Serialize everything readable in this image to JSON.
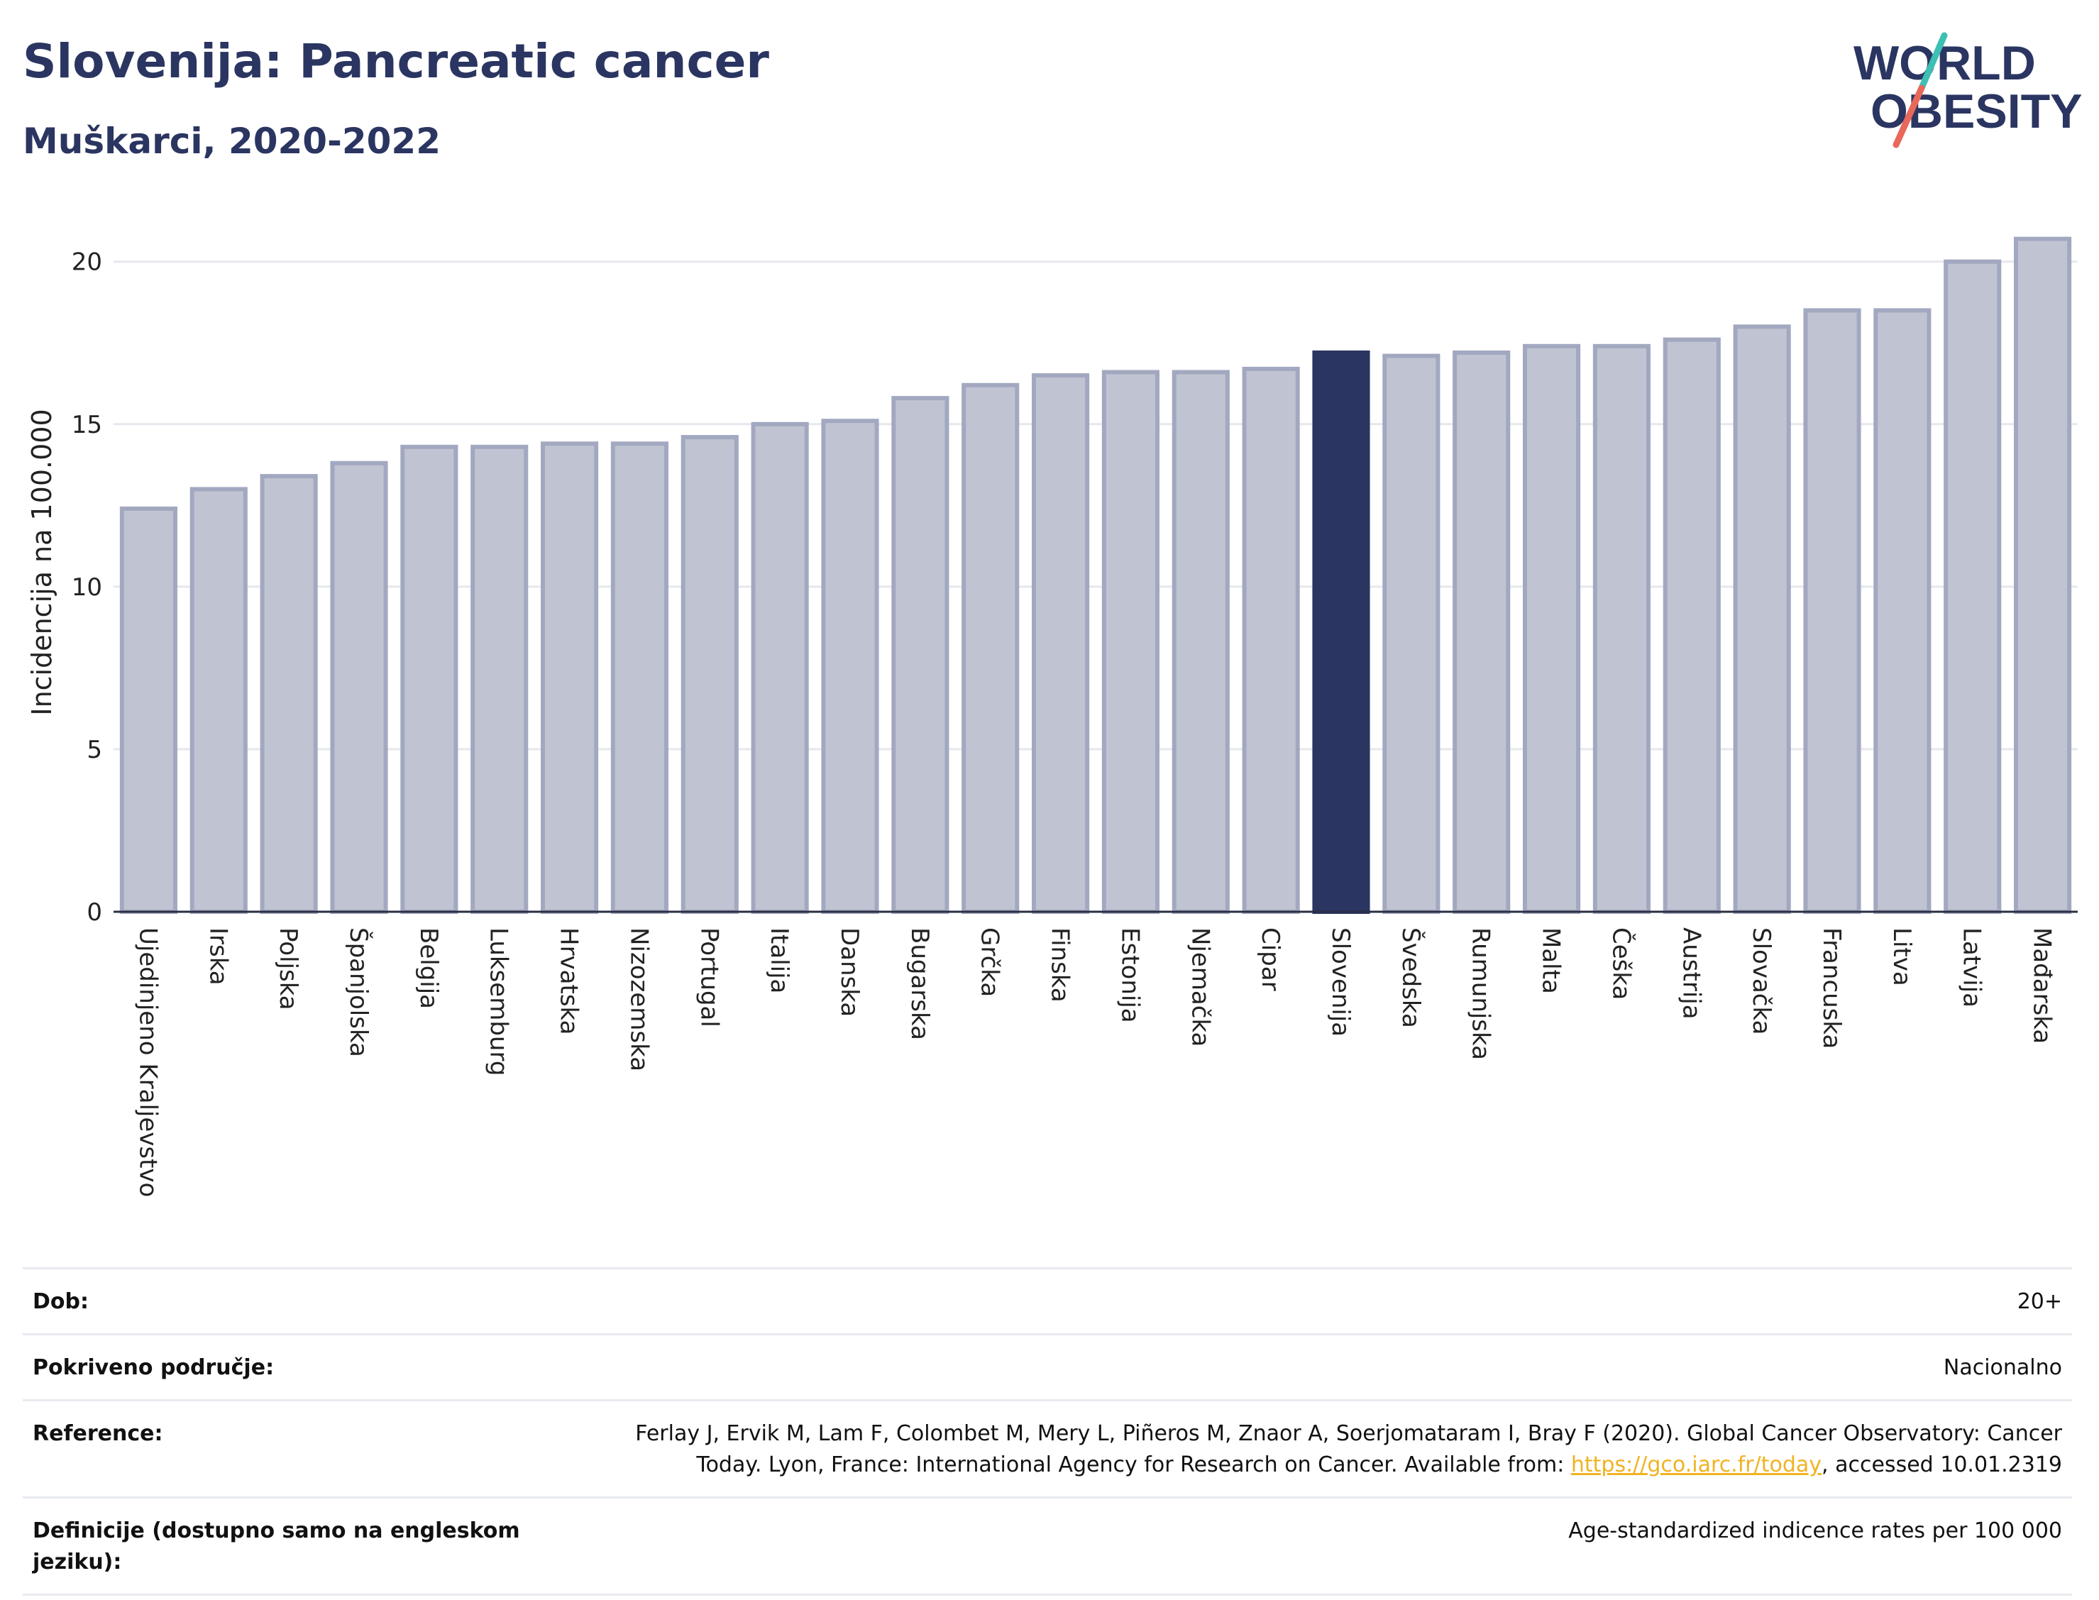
{
  "header": {
    "title": "Slovenija: Pancreatic cancer",
    "subtitle": "Muškarci, 2020-2022"
  },
  "logo": {
    "line1": "WORLD",
    "line2": "OBESITY"
  },
  "colors": {
    "highlight": "#2b3561",
    "bar_fill": "#c0c4d2",
    "bar_stroke": "#a2a8bf",
    "grid": "#e6e8ee",
    "logo_text": "#2b3561",
    "logo_slash_top": "#3dbfb4",
    "logo_slash_bottom": "#e8685a"
  },
  "chart_data": {
    "type": "bar",
    "ylabel": "Incidencija na 100.000",
    "ylim": [
      0,
      21.5
    ],
    "yticks": [
      0,
      5,
      10,
      15,
      20
    ],
    "grid": true,
    "highlight_category": "Slovenija",
    "categories": [
      "Ujedinjeno Kraljevstvo",
      "Irska",
      "Poljska",
      "Španjolska",
      "Belgija",
      "Luksemburg",
      "Hrvatska",
      "Nizozemska",
      "Portugal",
      "Italija",
      "Danska",
      "Bugarska",
      "Grčka",
      "Finska",
      "Estonija",
      "Njemačka",
      "Cipar",
      "Slovenija",
      "Švedska",
      "Rumunjska",
      "Malta",
      "Češka",
      "Austrija",
      "Slovačka",
      "Francuska",
      "Litva",
      "Latvija",
      "Mađarska"
    ],
    "values": [
      12.4,
      13.0,
      13.4,
      13.8,
      14.3,
      14.3,
      14.4,
      14.4,
      14.6,
      15.0,
      15.1,
      15.8,
      16.2,
      16.5,
      16.6,
      16.6,
      16.7,
      17.2,
      17.1,
      17.2,
      17.4,
      17.4,
      17.6,
      18.0,
      18.5,
      18.5,
      20.0,
      20.7
    ]
  },
  "info": {
    "rows": [
      {
        "label": "Dob:",
        "value": "20+"
      },
      {
        "label": "Pokriveno područje:",
        "value": "Nacionalno"
      },
      {
        "label": "Reference:",
        "value_pre": "Ferlay J, Ervik M, Lam F, Colombet M, Mery L, Piñeros M, Znaor A, Soerjomataram I, Bray F (2020). Global Cancer Observatory: Cancer Today. Lyon, France: International Agency for Research on Cancer. Available from: ",
        "link": "https://gco.iarc.fr/today",
        "value_post": ", accessed 10.01.2319"
      },
      {
        "label": "Definicije (dostupno samo na engleskom jeziku):",
        "value": "Age-standardized indicence rates per 100 000"
      }
    ]
  }
}
